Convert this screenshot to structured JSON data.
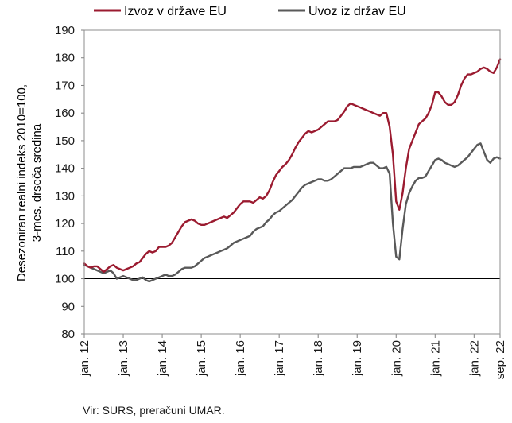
{
  "source_note": "Vir: SURS, preračuni UMAR.",
  "chart_data": {
    "type": "line",
    "title": "",
    "ylabel_lines": [
      "Desezoniran realni indeks 2010=100,",
      "3-mes. drseča sredina"
    ],
    "xlabel": "",
    "ylim": [
      80,
      190
    ],
    "yticks": [
      80,
      90,
      100,
      110,
      120,
      130,
      140,
      150,
      160,
      170,
      180,
      190
    ],
    "reference_line": 100,
    "grid": false,
    "legend_position": "top",
    "x_start": "2012-01",
    "x_end": "2022-09",
    "xticks": [
      {
        "label": "jan. 12",
        "month_index": 0
      },
      {
        "label": "jan. 13",
        "month_index": 12
      },
      {
        "label": "jan. 14",
        "month_index": 24
      },
      {
        "label": "jan. 15",
        "month_index": 36
      },
      {
        "label": "jan. 16",
        "month_index": 48
      },
      {
        "label": "jan. 17",
        "month_index": 60
      },
      {
        "label": "jan. 18",
        "month_index": 72
      },
      {
        "label": "jan. 19",
        "month_index": 84
      },
      {
        "label": "jan. 20",
        "month_index": 96
      },
      {
        "label": "jan. 21",
        "month_index": 108
      },
      {
        "label": "jan. 22",
        "month_index": 120
      },
      {
        "label": "sep. 22",
        "month_index": 128
      }
    ],
    "series": [
      {
        "name": "Izvoz v države EU",
        "color": "#9b1b30",
        "values": [
          105.5,
          104.5,
          104.0,
          104.5,
          104.5,
          103.5,
          102.5,
          103.5,
          104.5,
          105.0,
          104.0,
          103.5,
          103.0,
          103.5,
          104.0,
          104.5,
          105.5,
          106.0,
          107.5,
          109.0,
          110.0,
          109.5,
          110.0,
          111.5,
          111.5,
          111.5,
          112.0,
          113.0,
          115.0,
          117.0,
          119.0,
          120.5,
          121.0,
          121.5,
          121.0,
          120.0,
          119.5,
          119.5,
          120.0,
          120.5,
          121.0,
          121.5,
          122.0,
          122.5,
          122.0,
          123.0,
          124.0,
          125.5,
          127.0,
          128.0,
          128.0,
          128.0,
          127.5,
          128.5,
          129.5,
          129.0,
          130.0,
          132.0,
          135.0,
          137.5,
          139.0,
          140.5,
          141.5,
          143.0,
          145.0,
          147.5,
          149.5,
          151.0,
          152.5,
          153.5,
          153.0,
          153.5,
          154.0,
          155.0,
          156.0,
          157.0,
          157.0,
          157.0,
          157.5,
          159.0,
          160.5,
          162.5,
          163.5,
          163.0,
          162.5,
          162.0,
          161.5,
          161.0,
          160.5,
          160.0,
          159.5,
          159.0,
          160.0,
          160.0,
          155.0,
          145.0,
          128.0,
          125.0,
          131.0,
          140.0,
          147.0,
          150.0,
          153.0,
          156.0,
          157.0,
          158.0,
          160.0,
          163.0,
          167.5,
          167.5,
          166.0,
          164.0,
          163.0,
          163.0,
          164.0,
          166.5,
          170.0,
          172.5,
          174.0,
          174.0,
          174.5,
          175.0,
          176.0,
          176.5,
          176.0,
          175.0,
          174.5,
          176.5,
          179.5
        ]
      },
      {
        "name": "Uvoz iz držav EU",
        "color": "#595959",
        "values": [
          105.0,
          104.5,
          104.0,
          103.5,
          103.0,
          102.5,
          102.0,
          102.5,
          103.0,
          102.0,
          100.0,
          100.5,
          101.0,
          100.5,
          100.0,
          99.5,
          99.5,
          100.0,
          100.5,
          99.5,
          99.0,
          99.5,
          100.0,
          100.5,
          101.0,
          101.5,
          101.0,
          101.0,
          101.5,
          102.5,
          103.5,
          104.0,
          104.0,
          104.0,
          104.5,
          105.5,
          106.5,
          107.5,
          108.0,
          108.5,
          109.0,
          109.5,
          110.0,
          110.5,
          111.0,
          112.0,
          113.0,
          113.5,
          114.0,
          114.5,
          115.0,
          115.5,
          117.0,
          118.0,
          118.5,
          119.0,
          120.5,
          121.5,
          123.0,
          124.0,
          124.5,
          125.5,
          126.5,
          127.5,
          128.5,
          130.0,
          131.5,
          133.0,
          134.0,
          134.5,
          135.0,
          135.5,
          136.0,
          136.0,
          135.5,
          135.5,
          136.0,
          137.0,
          138.0,
          139.0,
          140.0,
          140.0,
          140.0,
          140.5,
          140.5,
          140.5,
          141.0,
          141.5,
          142.0,
          142.0,
          141.0,
          140.0,
          140.0,
          140.5,
          138.0,
          120.0,
          108.0,
          107.0,
          118.0,
          127.0,
          131.0,
          133.5,
          135.5,
          136.5,
          136.5,
          137.0,
          139.0,
          141.0,
          143.0,
          143.5,
          143.0,
          142.0,
          141.5,
          141.0,
          140.5,
          141.0,
          142.0,
          143.0,
          144.0,
          145.5,
          147.0,
          148.5,
          149.0,
          146.0,
          143.0,
          142.0,
          143.5,
          144.0,
          143.5
        ]
      }
    ]
  }
}
